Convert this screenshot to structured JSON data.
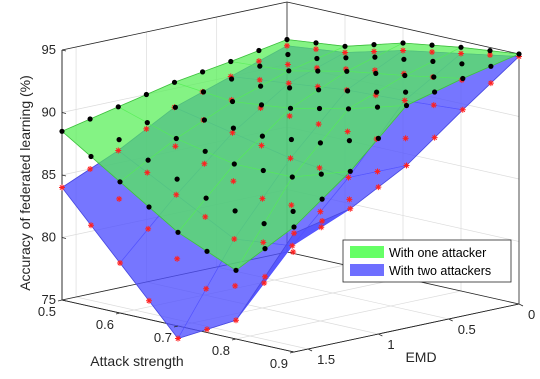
{
  "chart_data": {
    "type": "surface3d",
    "zlabel": "Accuracy of federated learning (%)",
    "xlabel": "Attack strength",
    "ylabel": "EMD",
    "zlim": [
      75,
      95
    ],
    "xlim": [
      0.5,
      0.9
    ],
    "ylim": [
      0,
      1.6
    ],
    "z_ticks": [
      "75",
      "80",
      "85",
      "90",
      "95"
    ],
    "x_ticks": [
      "0.5",
      "0.6",
      "0.7",
      "0.8",
      "0.9"
    ],
    "y_ticks": [
      "0",
      "0.5",
      "1",
      "1.5"
    ],
    "grid": true,
    "legend_position": "bottom-right",
    "series": [
      {
        "name": "With one attacker",
        "color": "#66ff66",
        "marker": "black dot",
        "x": [
          0.5,
          0.6,
          0.7,
          0.8,
          0.9
        ],
        "y": [
          0,
          0.4,
          0.8,
          1.2,
          1.6
        ],
        "z": [
          [
            92.0,
            92.5,
            93.8,
            94.5,
            95.0
          ],
          [
            91.2,
            91.5,
            92.5,
            93.2,
            94.0
          ],
          [
            90.5,
            90.0,
            90.5,
            91.5,
            92.8
          ],
          [
            89.5,
            88.0,
            87.0,
            87.0,
            88.5
          ],
          [
            88.5,
            85.5,
            82.5,
            80.5,
            85.0
          ]
        ]
      },
      {
        "name": "With two attackers",
        "color": "#5555ff",
        "marker": "red asterisk",
        "x": [
          0.5,
          0.6,
          0.7,
          0.8,
          0.9
        ],
        "y": [
          0,
          0.4,
          0.8,
          1.2,
          1.6
        ],
        "z": [
          [
            91.5,
            92.0,
            93.2,
            94.0,
            94.8
          ],
          [
            90.0,
            90.5,
            91.0,
            91.2,
            91.5
          ],
          [
            88.5,
            87.5,
            86.5,
            86.0,
            88.0
          ],
          [
            86.0,
            83.5,
            81.0,
            81.5,
            85.5
          ],
          [
            84.0,
            79.0,
            74.0,
            76.5,
            84.5
          ]
        ]
      }
    ]
  }
}
